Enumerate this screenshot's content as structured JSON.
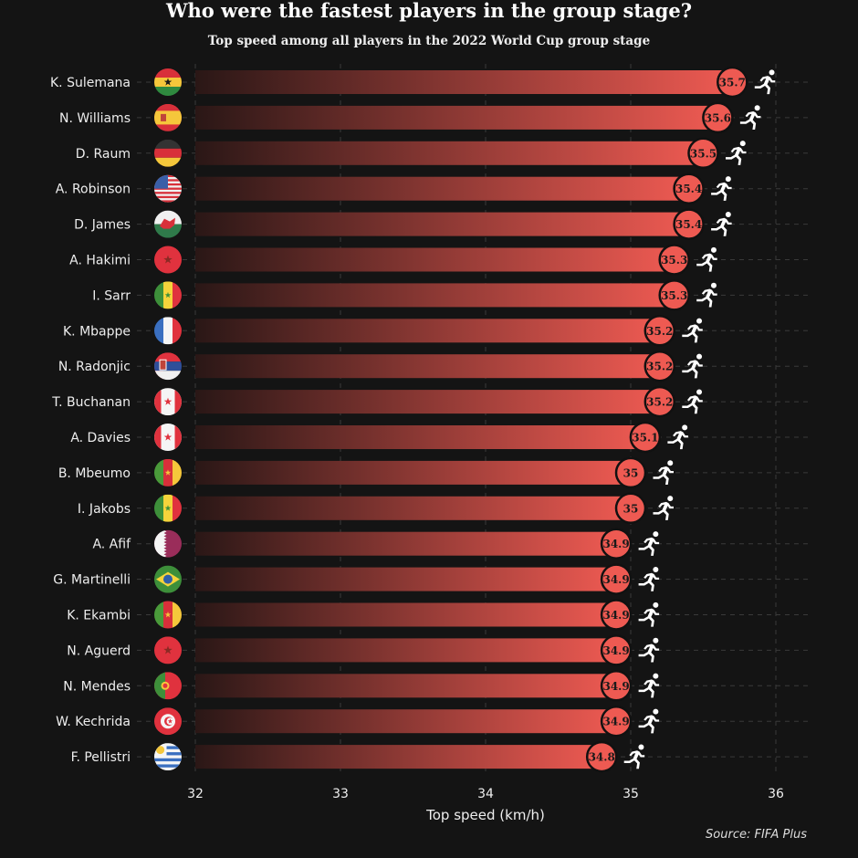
{
  "chart_data": {
    "type": "bar",
    "orientation": "horizontal",
    "title": "Who were the fastest players in the group stage?",
    "subtitle": "Top speed among all players in the 2022 World Cup group stage",
    "xlabel": "Top speed (km/h)",
    "ylabel": "",
    "xlim": [
      32,
      36
    ],
    "xticks": [
      "32",
      "33",
      "34",
      "35",
      "36"
    ],
    "grid": true,
    "source": "Source: FIFA Plus",
    "categories": [
      "K. Sulemana",
      "N. Williams",
      "D. Raum",
      "A. Robinson",
      "D. James",
      "A. Hakimi",
      "I. Sarr",
      "K. Mbappe",
      "N. Radonjic",
      "T. Buchanan",
      "A. Davies",
      "B. Mbeumo",
      "I. Jakobs",
      "A. Afif",
      "G. Martinelli",
      "K. Ekambi",
      "N. Aguerd",
      "N. Mendes",
      "W. Kechrida",
      "F. Pellistri"
    ],
    "countries": [
      "Ghana",
      "Spain",
      "Germany",
      "USA",
      "Wales",
      "Morocco",
      "Senegal",
      "France",
      "Serbia",
      "Canada",
      "Canada",
      "Cameroon",
      "Senegal",
      "Qatar",
      "Brazil",
      "Cameroon",
      "Morocco",
      "Portugal",
      "Tunisia",
      "Uruguay"
    ],
    "values": [
      35.7,
      35.6,
      35.5,
      35.4,
      35.4,
      35.3,
      35.3,
      35.2,
      35.2,
      35.2,
      35.1,
      35,
      35,
      34.9,
      34.9,
      34.9,
      34.9,
      34.9,
      34.9,
      34.8
    ],
    "value_labels": [
      "35.7",
      "35.6",
      "35.5",
      "35.4",
      "35.4",
      "35.3",
      "35.3",
      "35.2",
      "35.2",
      "35.2",
      "35.1",
      "35",
      "35",
      "34.9",
      "34.9",
      "34.9",
      "34.9",
      "34.9",
      "34.9",
      "34.8"
    ],
    "icon": "running-person-icon",
    "colors": {
      "bar": "#ee5a52",
      "bar_start": "#2a1716",
      "background": "#141414",
      "label_text": "#1a1a1a",
      "icon": "#ffffff"
    }
  }
}
